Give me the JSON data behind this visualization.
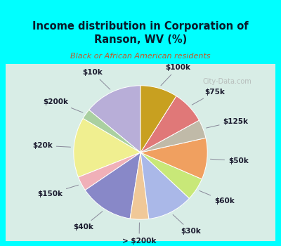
{
  "title": "Income distribution in Corporation of\nRanson, WV (%)",
  "subtitle": "Black or African American residents",
  "bg_cyan": "#00FFFF",
  "bg_chart": "#d8ede6",
  "slices": [
    {
      "label": "$10k",
      "value": 14.0,
      "color": "#b8aed8"
    },
    {
      "label": "$200k",
      "value": 2.5,
      "color": "#aad0a0"
    },
    {
      "label": "$20k",
      "value": 14.5,
      "color": "#f0ef90"
    },
    {
      "label": "$150k",
      "value": 3.5,
      "color": "#f0b0b8"
    },
    {
      "label": "$40k",
      "value": 13.0,
      "color": "#8888c8"
    },
    {
      "label": "> $200k",
      "value": 4.5,
      "color": "#f0c898"
    },
    {
      "label": "$30k",
      "value": 11.0,
      "color": "#aab8e8"
    },
    {
      "label": "$60k",
      "value": 5.5,
      "color": "#c8e878"
    },
    {
      "label": "$50k",
      "value": 10.0,
      "color": "#f0a060"
    },
    {
      "label": "$125k",
      "value": 4.5,
      "color": "#c0baa8"
    },
    {
      "label": "$75k",
      "value": 8.0,
      "color": "#e07878"
    },
    {
      "label": "$100k",
      "value": 9.0,
      "color": "#c8a020"
    }
  ],
  "startangle": 90,
  "label_fontsize": 7.5,
  "label_color": "#1a1a2e",
  "watermark": "City-Data.com",
  "watermark_color": "#aaaaaa"
}
